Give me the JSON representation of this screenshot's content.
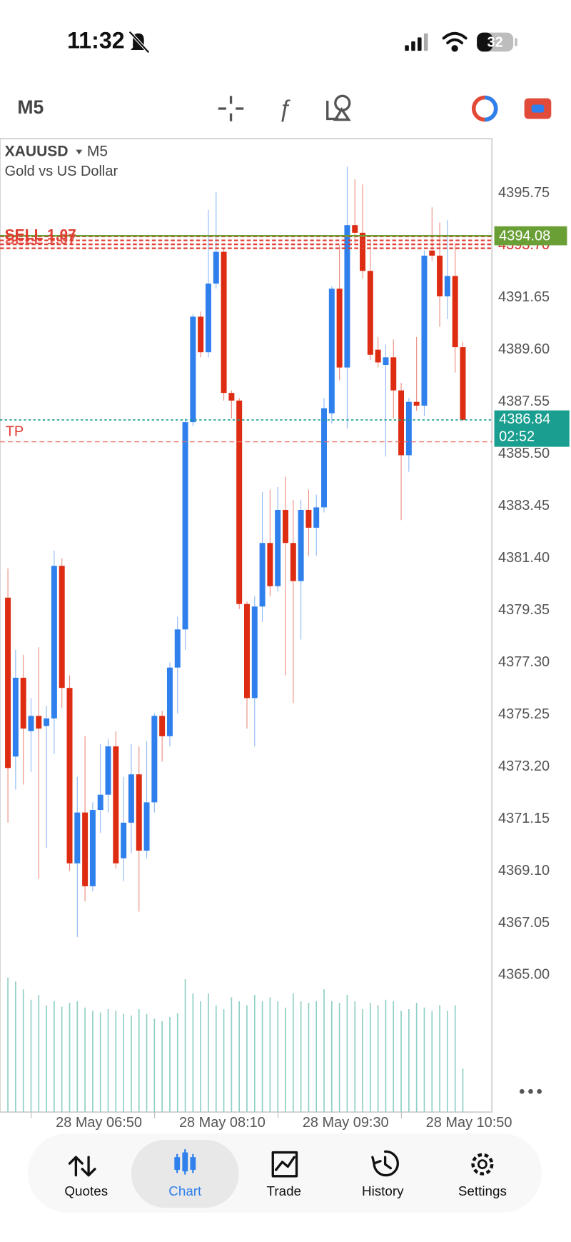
{
  "status_bar": {
    "time": "11:32",
    "battery": "32"
  },
  "toolbar": {
    "timeframe": "M5"
  },
  "chart_data": {
    "type": "candlestick",
    "symbol": "XAUUSD",
    "timeframe": "M5",
    "description": "Gold vs US Dollar",
    "categories": [
      null,
      null,
      null,
      null,
      null,
      null,
      null,
      null,
      null,
      null,
      "28 May 06:50",
      null,
      null,
      null,
      null,
      null,
      null,
      null,
      null,
      null,
      null,
      null,
      null,
      null,
      null,
      null,
      "28 May 08:10",
      null,
      null,
      null,
      null,
      null,
      null,
      null,
      null,
      null,
      null,
      null,
      null,
      null,
      null,
      null,
      "28 May 09:30",
      null,
      null,
      null,
      null,
      null,
      null,
      null,
      null,
      null,
      null,
      null,
      null,
      null,
      null,
      null,
      "28 May 10:50",
      null
    ],
    "open": [
      4379.85,
      4373.6,
      4376.7,
      4374.6,
      4375.2,
      4374.8,
      4375.1,
      4381.1,
      4376.3,
      4369.4,
      4371.4,
      4368.5,
      4371.5,
      4372.1,
      4374.0,
      4369.6,
      4371.0,
      4372.9,
      4369.9,
      4371.8,
      4375.2,
      4374.4,
      4377.1,
      4378.6,
      4386.75,
      4390.9,
      4389.5,
      4392.2,
      4393.45,
      4387.9,
      4387.6,
      4379.6,
      4375.9,
      4379.5,
      4382.0,
      4380.3,
      4383.3,
      4382.0,
      4380.5,
      4383.3,
      4382.6,
      4383.4,
      4387.1,
      4392.0,
      4388.9,
      4394.5,
      4394.2,
      4392.7,
      4389.6,
      4389.0,
      4389.3,
      4388.0,
      4385.45,
      4387.55,
      4387.4,
      4393.5,
      4393.3,
      4391.7,
      4392.5,
      4389.7
    ],
    "high": [
      4381.0,
      4377.8,
      4377.6,
      4375.9,
      4377.9,
      4375.6,
      4381.7,
      4381.4,
      4376.8,
      4372.8,
      4374.4,
      4371.8,
      4374.1,
      4374.3,
      4374.6,
      4372.8,
      4374.1,
      4374.0,
      4374.2,
      4375.3,
      4375.4,
      4377.3,
      4379.1,
      4386.9,
      4391.0,
      4391.1,
      4395.1,
      4395.8,
      4393.6,
      4388.0,
      4387.7,
      4379.7,
      4379.9,
      4384.0,
      4384.1,
      4384.2,
      4384.6,
      4383.7,
      4383.7,
      4384.1,
      4383.9,
      4387.7,
      4392.1,
      4393.7,
      4396.8,
      4396.3,
      4396.1,
      4393.9,
      4390.1,
      4389.8,
      4390.0,
      4388.3,
      4387.7,
      4390.1,
      4393.5,
      4395.2,
      4394.6,
      4394.7,
      4393.8,
      4389.9
    ],
    "low": [
      4371.0,
      4372.3,
      4372.5,
      4373.0,
      4368.8,
      4370.0,
      4373.7,
      4375.5,
      4369.1,
      4366.5,
      4367.9,
      4368.3,
      4370.6,
      4371.4,
      4369.2,
      4368.7,
      4369.8,
      4367.5,
      4369.6,
      4371.4,
      4373.4,
      4374.0,
      4375.3,
      4377.8,
      4386.6,
      4389.3,
      4389.3,
      4392.0,
      4387.6,
      4386.9,
      4379.4,
      4374.7,
      4374.0,
      4378.9,
      4379.9,
      4380.1,
      4376.8,
      4375.7,
      4378.2,
      4381.5,
      4381.5,
      4383.2,
      4386.7,
      4388.4,
      4386.5,
      4393.8,
      4392.4,
      4389.2,
      4388.9,
      4385.4,
      4386.9,
      4382.9,
      4384.8,
      4387.2,
      4387.0,
      4393.1,
      4390.5,
      4390.8,
      4388.7,
      4386.8
    ],
    "close": [
      4373.15,
      4376.7,
      4374.7,
      4375.2,
      4374.7,
      4375.1,
      4381.1,
      4376.3,
      4369.4,
      4371.4,
      4368.5,
      4371.5,
      4372.1,
      4374.0,
      4369.4,
      4371.0,
      4372.9,
      4369.9,
      4371.8,
      4375.2,
      4374.4,
      4377.1,
      4378.6,
      4386.75,
      4390.9,
      4389.5,
      4392.2,
      4393.45,
      4387.9,
      4387.6,
      4379.6,
      4375.9,
      4379.5,
      4382.0,
      4380.3,
      4383.3,
      4382.0,
      4380.5,
      4383.3,
      4382.6,
      4383.4,
      4387.3,
      4392.0,
      4388.9,
      4394.5,
      4394.2,
      4392.7,
      4389.4,
      4389.1,
      4389.3,
      4388.0,
      4385.45,
      4387.55,
      4387.4,
      4393.3,
      4393.3,
      4391.7,
      4392.5,
      4389.7,
      4386.84
    ],
    "up_color": "#2f80ed",
    "down_color": "#dd2c12",
    "volume": [
      170,
      165,
      155,
      142,
      148,
      135,
      140,
      133,
      138,
      140,
      132,
      128,
      126,
      130,
      128,
      124,
      122,
      130,
      124,
      118,
      115,
      120,
      125,
      168,
      150,
      140,
      150,
      135,
      130,
      145,
      140,
      135,
      148,
      140,
      145,
      140,
      132,
      150,
      140,
      138,
      140,
      155,
      140,
      138,
      148,
      140,
      130,
      138,
      135,
      142,
      140,
      128,
      130,
      138,
      132,
      128,
      135,
      128,
      135,
      55
    ],
    "volume_color": "#8fcfc4",
    "ylim": [
      4359.62,
      4397.9
    ],
    "yticks": [
      4395.75,
      {
        "value": 4393.7,
        "label": "4393.70"
      },
      4391.65,
      {
        "value": 4389.6,
        "label": "4389.60"
      },
      4387.55,
      {
        "value": 4385.5,
        "label": "4385.50"
      },
      4383.45,
      {
        "value": 4381.4,
        "label": "4381.40"
      },
      4379.35,
      {
        "value": 4377.3,
        "label": "4377.30"
      },
      4375.25,
      {
        "value": 4373.2,
        "label": "4373.20"
      },
      4371.15,
      {
        "value": 4369.1,
        "label": "4369.10"
      },
      4367.05,
      {
        "value": 4365,
        "label": "4365.00"
      }
    ],
    "order": {
      "label": "SELL 1.07",
      "value": 4393.9,
      "color": "#e03c31"
    },
    "order_price": {
      "value": 4393.7,
      "label": "4393.70"
    },
    "bid": {
      "value": 4394.08,
      "color": "#6a9f36"
    },
    "take_profit": {
      "label": "TP",
      "value": 4385.98,
      "color": "#e8706a"
    },
    "last": {
      "value": 4386.84,
      "countdown": "02:52",
      "color": "#1a9e8f"
    }
  },
  "nav": {
    "items": [
      "Quotes",
      "Chart",
      "Trade",
      "History",
      "Settings"
    ],
    "active": 1
  }
}
